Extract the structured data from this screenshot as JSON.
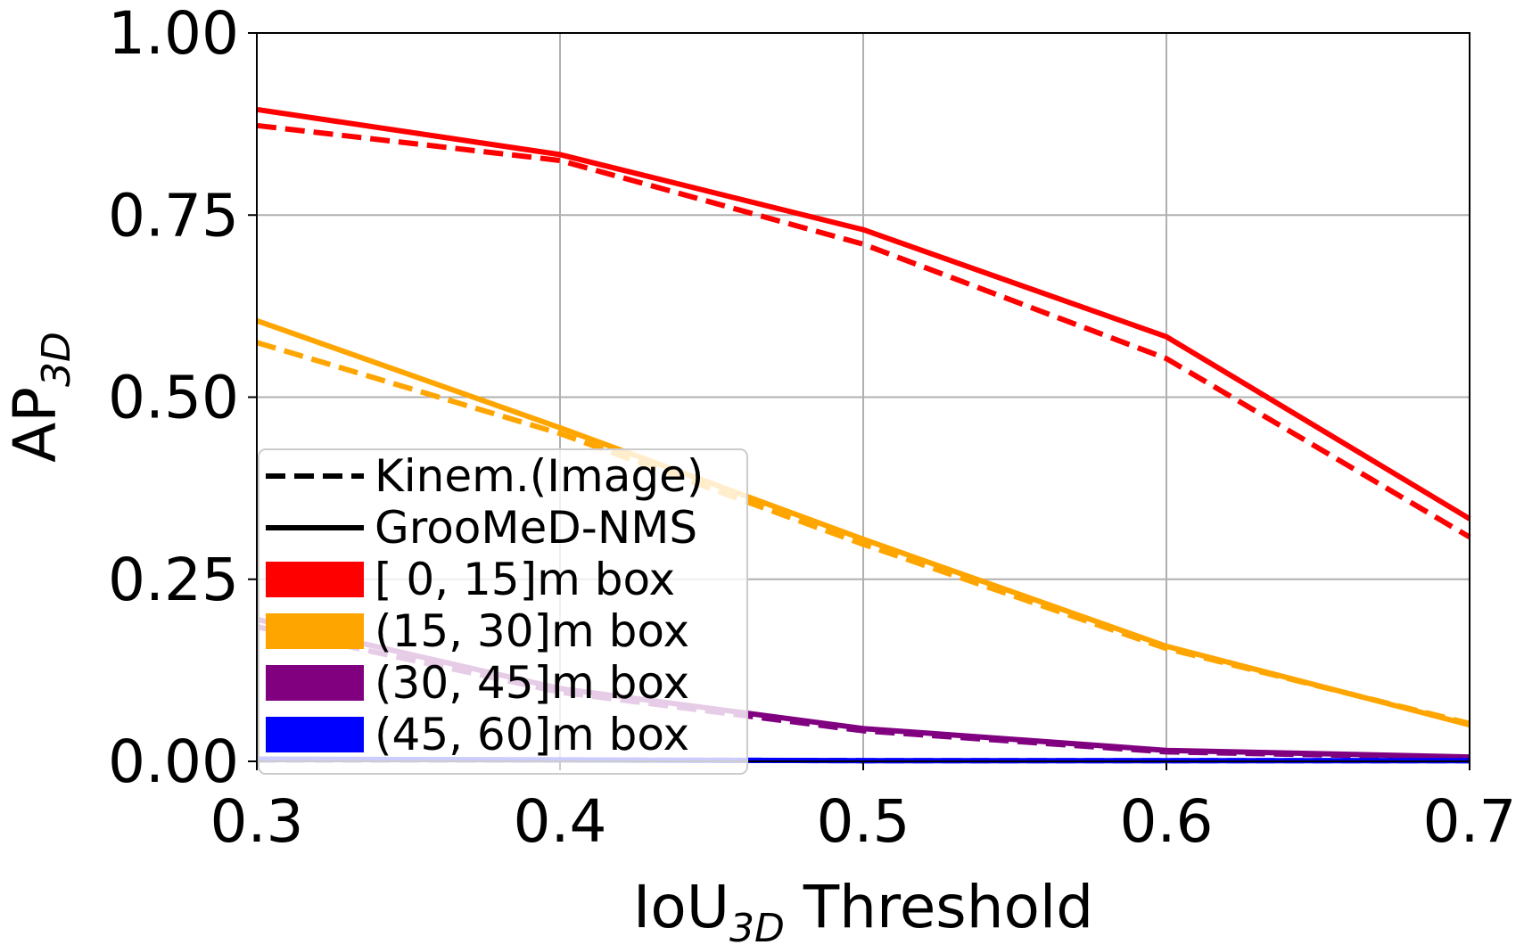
{
  "chart_data": {
    "type": "line",
    "xlabel_main": "IoU",
    "xlabel_sub": "3D",
    "xlabel_rest": " Threshold",
    "ylabel_main": "AP",
    "ylabel_sub": "3D",
    "x": [
      0.3,
      0.4,
      0.5,
      0.6,
      0.7
    ],
    "xlim": [
      0.3,
      0.7
    ],
    "ylim": [
      0.0,
      1.0
    ],
    "xticks": [
      "0.3",
      "0.4",
      "0.5",
      "0.6",
      "0.7"
    ],
    "yticks": [
      "0.00",
      "0.25",
      "0.50",
      "0.75",
      "1.00"
    ],
    "grid": true,
    "legend_position": "lower-left",
    "series": [
      {
        "method": "Kinem.(Image)",
        "range": "[  0, 15]m box",
        "color": "#ff0000",
        "style": "dashed",
        "values": [
          0.873,
          0.825,
          0.71,
          0.553,
          0.308
        ]
      },
      {
        "method": "GrooMeD-NMS",
        "range": "[  0, 15]m box",
        "color": "#ff0000",
        "style": "solid",
        "values": [
          0.895,
          0.833,
          0.73,
          0.583,
          0.333
        ]
      },
      {
        "method": "Kinem.(Image)",
        "range": "(15, 30]m box",
        "color": "#ffa500",
        "style": "dashed",
        "values": [
          0.575,
          0.45,
          0.298,
          0.155,
          0.052
        ]
      },
      {
        "method": "GrooMeD-NMS",
        "range": "(15, 30]m box",
        "color": "#ffa500",
        "style": "solid",
        "values": [
          0.605,
          0.458,
          0.305,
          0.158,
          0.05
        ]
      },
      {
        "method": "Kinem.(Image)",
        "range": "(30, 45]m box",
        "color": "#800080",
        "style": "dashed",
        "values": [
          0.185,
          0.095,
          0.042,
          0.013,
          0.005
        ]
      },
      {
        "method": "GrooMeD-NMS",
        "range": "(30, 45]m box",
        "color": "#800080",
        "style": "solid",
        "values": [
          0.195,
          0.1,
          0.045,
          0.015,
          0.006
        ]
      },
      {
        "method": "Kinem.(Image)",
        "range": "(45, 60]m box",
        "color": "#0000ff",
        "style": "dashed",
        "values": [
          0.002,
          0.002,
          0.001,
          0.001,
          0.001
        ]
      },
      {
        "method": "GrooMeD-NMS",
        "range": "(45, 60]m box",
        "color": "#0000ff",
        "style": "solid",
        "values": [
          0.003,
          0.002,
          0.001,
          0.001,
          0.001
        ]
      }
    ],
    "legend": [
      {
        "label": "Kinem.(Image)",
        "kind": "line",
        "style": "dashed",
        "color": "#000000"
      },
      {
        "label": "GrooMeD-NMS",
        "kind": "line",
        "style": "solid",
        "color": "#000000"
      },
      {
        "label": "[  0, 15]m box",
        "kind": "patch",
        "color": "#ff0000"
      },
      {
        "label": "(15, 30]m box",
        "kind": "patch",
        "color": "#ffa500"
      },
      {
        "label": "(30, 45]m box",
        "kind": "patch",
        "color": "#800080"
      },
      {
        "label": "(45, 60]m box",
        "kind": "patch",
        "color": "#0000ff"
      }
    ]
  }
}
